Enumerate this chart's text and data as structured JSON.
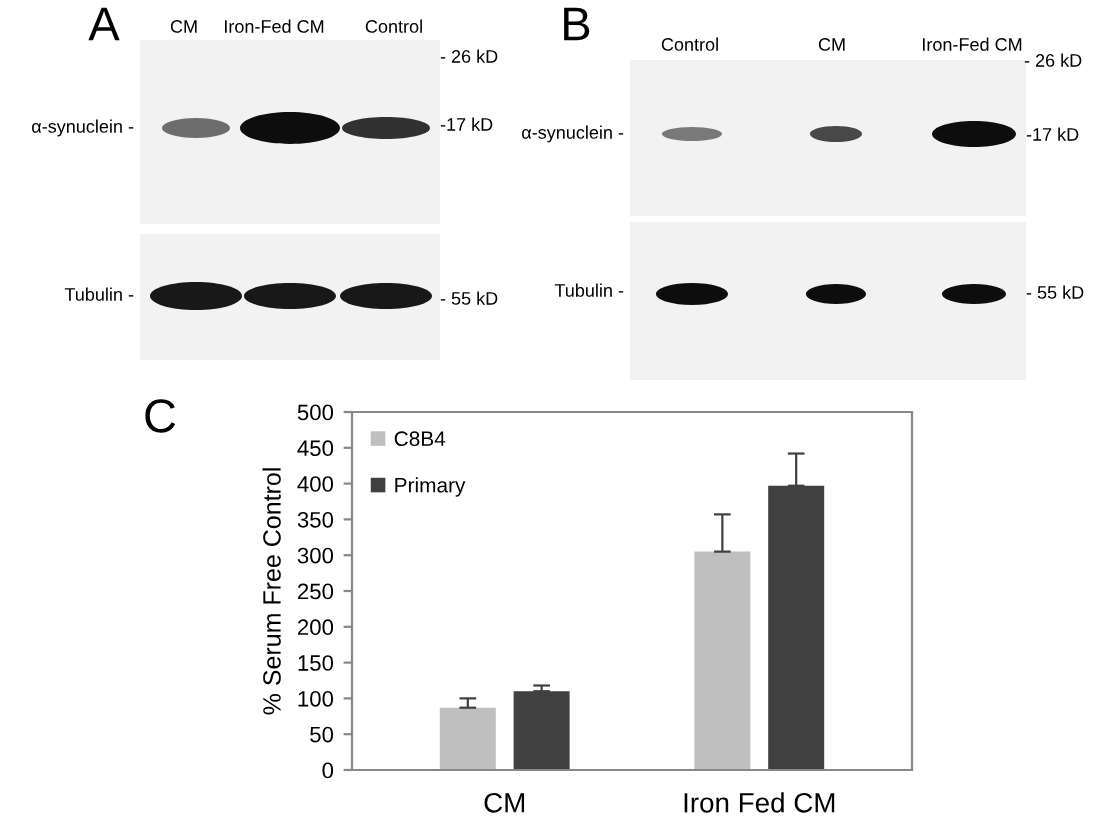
{
  "chart_data": [
    {
      "type": "other",
      "title": "A",
      "annotations": [
        "CM",
        "Iron-Fed CM",
        "Control",
        "α-synuclein -",
        "Tubulin -",
        "- 26 kD",
        "-17 kD",
        "- 55 kD"
      ]
    },
    {
      "type": "other",
      "title": "B",
      "annotations": [
        "Control",
        "CM",
        "Iron-Fed CM",
        "α-synuclein -",
        "Tubulin -",
        "- 26 kD",
        "-17 kD",
        "- 55 kD"
      ]
    },
    {
      "type": "bar",
      "title": "C",
      "ylabel": "% Serum Free Control",
      "categories": [
        "CM",
        "Iron Fed CM"
      ],
      "series": [
        {
          "name": "C8B4",
          "color": "#bfbfbf",
          "values": [
            87,
            305
          ],
          "errors": [
            [
              87,
              100
            ],
            [
              305,
              357
            ]
          ]
        },
        {
          "name": "Primary",
          "color": "#404040",
          "values": [
            110,
            397
          ],
          "errors": [
            [
              110,
              118
            ],
            [
              397,
              442
            ]
          ]
        }
      ],
      "ylim": [
        0,
        500
      ],
      "yticks": [
        0,
        50,
        100,
        150,
        200,
        250,
        300,
        350,
        400,
        450,
        500
      ],
      "legend": "top left"
    }
  ]
}
